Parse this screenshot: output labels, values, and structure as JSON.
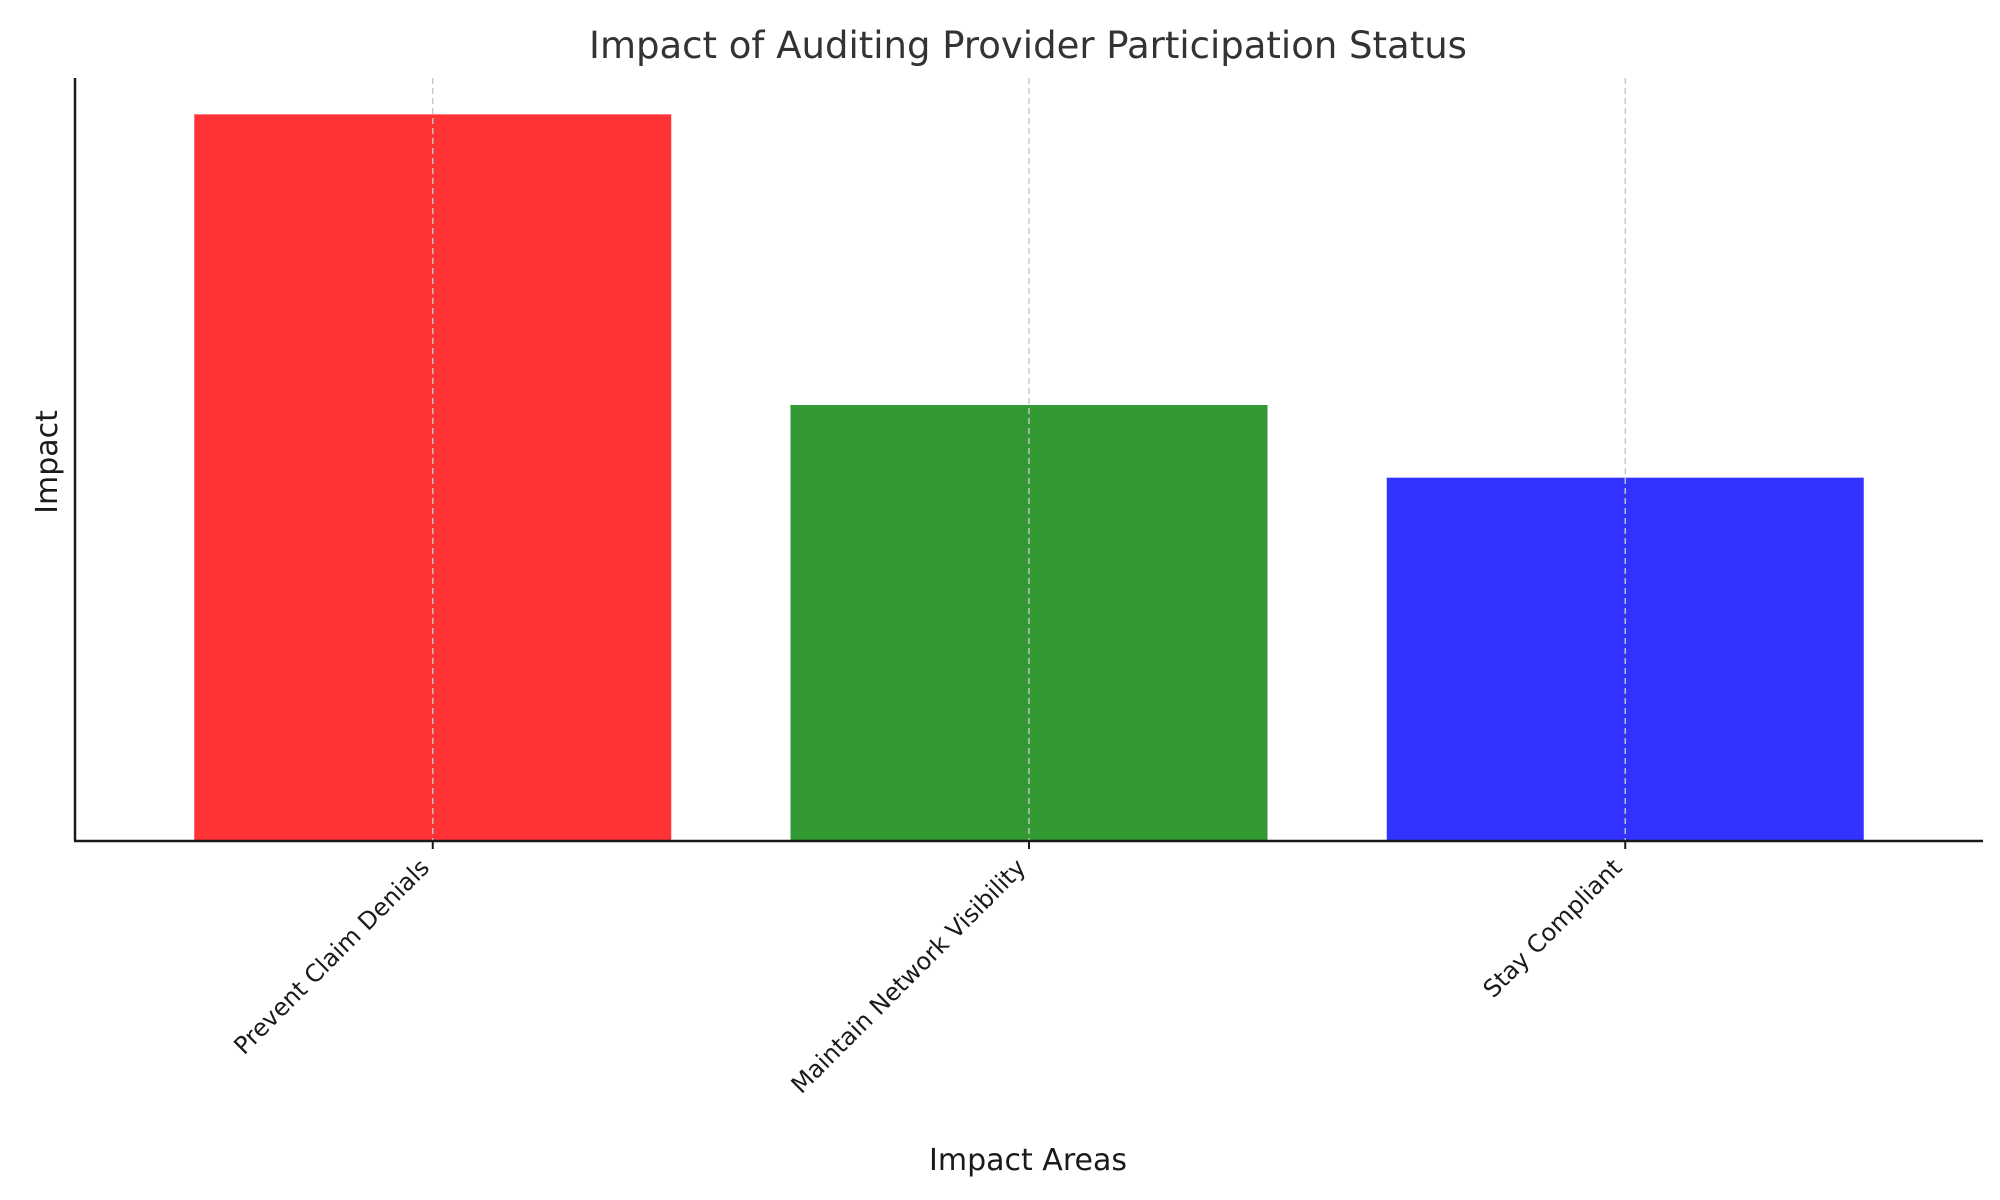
{
  "chart_data": {
    "type": "bar",
    "title": "Impact of Auditing Provider Participation Status",
    "xlabel": "Impact Areas",
    "ylabel": "Impact",
    "categories": [
      "Prevent Claim Denials",
      "Maintain Network Visibility",
      "Stay Compliant"
    ],
    "values": [
      10,
      6,
      5
    ],
    "colors": [
      "#ff3336",
      "#339933",
      "#3333ff"
    ],
    "ylim": [
      0,
      10.5
    ],
    "y_ticks_shown": false,
    "grid": "vertical dashed lines at category positions",
    "legend": "none"
  }
}
